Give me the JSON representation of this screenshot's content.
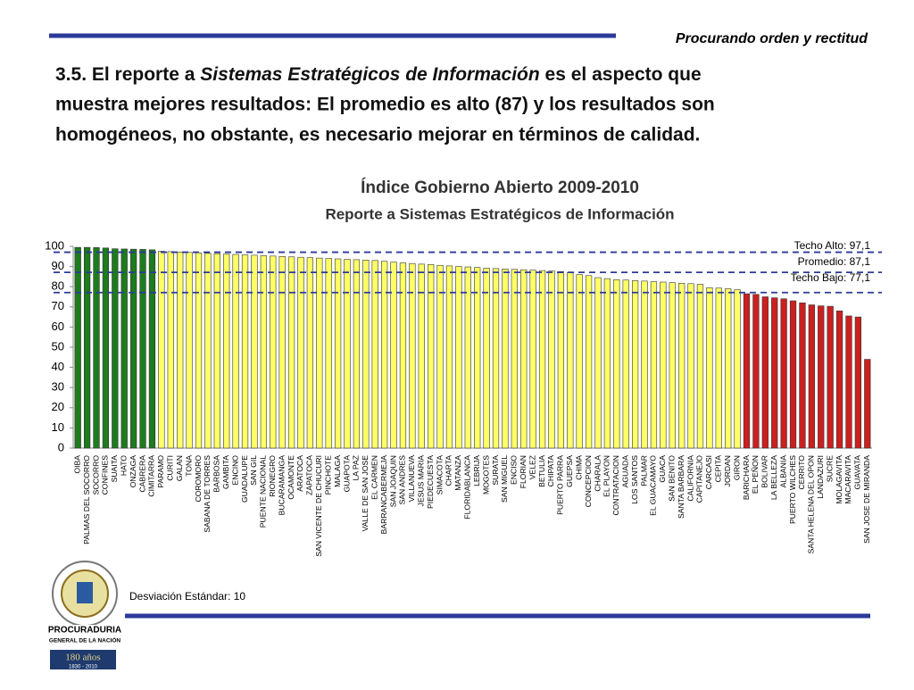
{
  "header": {
    "tagline": "Procurando orden y rectitud"
  },
  "heading": {
    "prefix": "3.5. El reporte a ",
    "emphasis": "Sistemas Estratégicos de Información",
    "line1_rest": " es el aspecto que",
    "line2": "muestra mejores resultados:  El promedio es alto (87) y los resultados son",
    "line3": "homogéneos, no obstante, es  necesario mejorar en términos de calidad."
  },
  "chart_data": {
    "type": "bar",
    "title": "Índice Gobierno Abierto 2009-2010",
    "subtitle": "Reporte a Sistemas Estratégicos de Información",
    "ylim": [
      0,
      100
    ],
    "yticks": [
      0,
      10,
      20,
      30,
      40,
      50,
      60,
      70,
      80,
      90,
      100
    ],
    "groups": [
      {
        "color": "#1e7b1e",
        "categories": [
          "OIBA",
          "PALMAS DEL SOCORRO",
          "SOCORRO",
          "CONFINES",
          "SUAITA",
          "HATO",
          "ONZAGA",
          "CABRERA",
          "CIMITARRA"
        ],
        "values": [
          99.5,
          99.5,
          99.4,
          99.2,
          98.8,
          98.7,
          98.6,
          98.5,
          98.3
        ]
      },
      {
        "color": "#ffff66",
        "categories": [
          "PARAMO",
          "CURITI",
          "GALAN",
          "TONA",
          "COROMORO",
          "SABANA DE TORRES",
          "BARBOSA",
          "GAMBITA",
          "ENCINO",
          "GUADALUPE",
          "SAN GIL",
          "PUENTE NACIONAL",
          "RIONEGRO",
          "BUCARAMANGA",
          "OCAMONTE",
          "ARATOCA",
          "ZAPATOCA",
          "SAN VICENTE DE CHUCURI",
          "PINCHOTE",
          "MALAGA",
          "GUAPOTA",
          "LA PAZ",
          "VALLE DE SAN JOSE",
          "EL CARMEN",
          "BARRANCABERMEJA",
          "SAN JOAQUIN",
          "SAN ANDRES",
          "VILLANUEVA",
          "JESUS MARIA",
          "PIEDECUESTA",
          "SIMACOTA",
          "CHARTA",
          "MATANZA",
          "FLORIDABLANCA",
          "LEBRIJA",
          "MOGOTES",
          "SURATA",
          "SAN MIGUEL",
          "ENCISO",
          "FLORIAN",
          "VELEZ",
          "BETULIA",
          "CHIPATA",
          "PUERTO PARRA",
          "GUEPSA",
          "CHIMA",
          "CONCEPCION",
          "CHARALA",
          "EL PLAYON",
          "CONTRATACION",
          "AGUADA",
          "LOS SANTOS",
          "PALMAR",
          "EL GUACAMAYO",
          "GUACA",
          "SAN BENITO",
          "SANTA BARBARA",
          "CALIFORNIA",
          "CAPITANEJO",
          "CARCASI",
          "CEPITA",
          "JORDAN",
          "GIRON"
        ],
        "values": [
          97.6,
          97.4,
          97.2,
          97,
          96.8,
          96.6,
          96.4,
          96.2,
          96,
          95.8,
          95.6,
          95.4,
          95.2,
          95,
          94.8,
          94.6,
          94.4,
          94.2,
          94,
          93.8,
          93.6,
          93.4,
          93.2,
          93,
          92.6,
          92.2,
          91.8,
          91.5,
          91.2,
          91,
          90.6,
          90.3,
          90,
          89.8,
          89.5,
          89.2,
          89,
          88.8,
          88.6,
          88.4,
          88.2,
          88,
          87.8,
          87.5,
          87,
          86,
          85.5,
          84.5,
          84,
          83.5,
          83.3,
          83,
          82.8,
          82.5,
          82.3,
          82,
          81.7,
          81.5,
          81.2,
          79.5,
          79.3,
          79,
          78.5
        ]
      },
      {
        "color": "#cc1f1f",
        "categories": [
          "BARICHARA",
          "EL PEÑON",
          "BOLIVAR",
          "LA BELLEZA",
          "ALBANIA",
          "PUERTO WILCHES",
          "CERRITO",
          "SANTA HELENA DEL OPON",
          "LANDAZURI",
          "SUCRE",
          "MOLAGAVITA",
          "MACARAVITA",
          "GUAVATA",
          "SAN JOSE DE MIRANDA"
        ],
        "values": [
          76.5,
          76.2,
          75,
          74.5,
          74,
          73,
          72,
          71,
          70.5,
          70.3,
          68,
          65.5,
          65,
          44
        ]
      }
    ],
    "reference_lines": [
      {
        "value": 97.1,
        "label": "Techo Alto: 97,1"
      },
      {
        "value": 87.1,
        "label": "Promedio: 87,1"
      },
      {
        "value": 77.1,
        "label": "Techo Bajo: 77,1"
      }
    ],
    "reference_color": "#2b3a9a",
    "note": "Desviación Estándar: 10"
  },
  "logo": {
    "name1": "PROCURADURIA",
    "name2": "GENERAL DE LA NACIÓN",
    "years": "180 años",
    "range": "1830 - 2010"
  }
}
